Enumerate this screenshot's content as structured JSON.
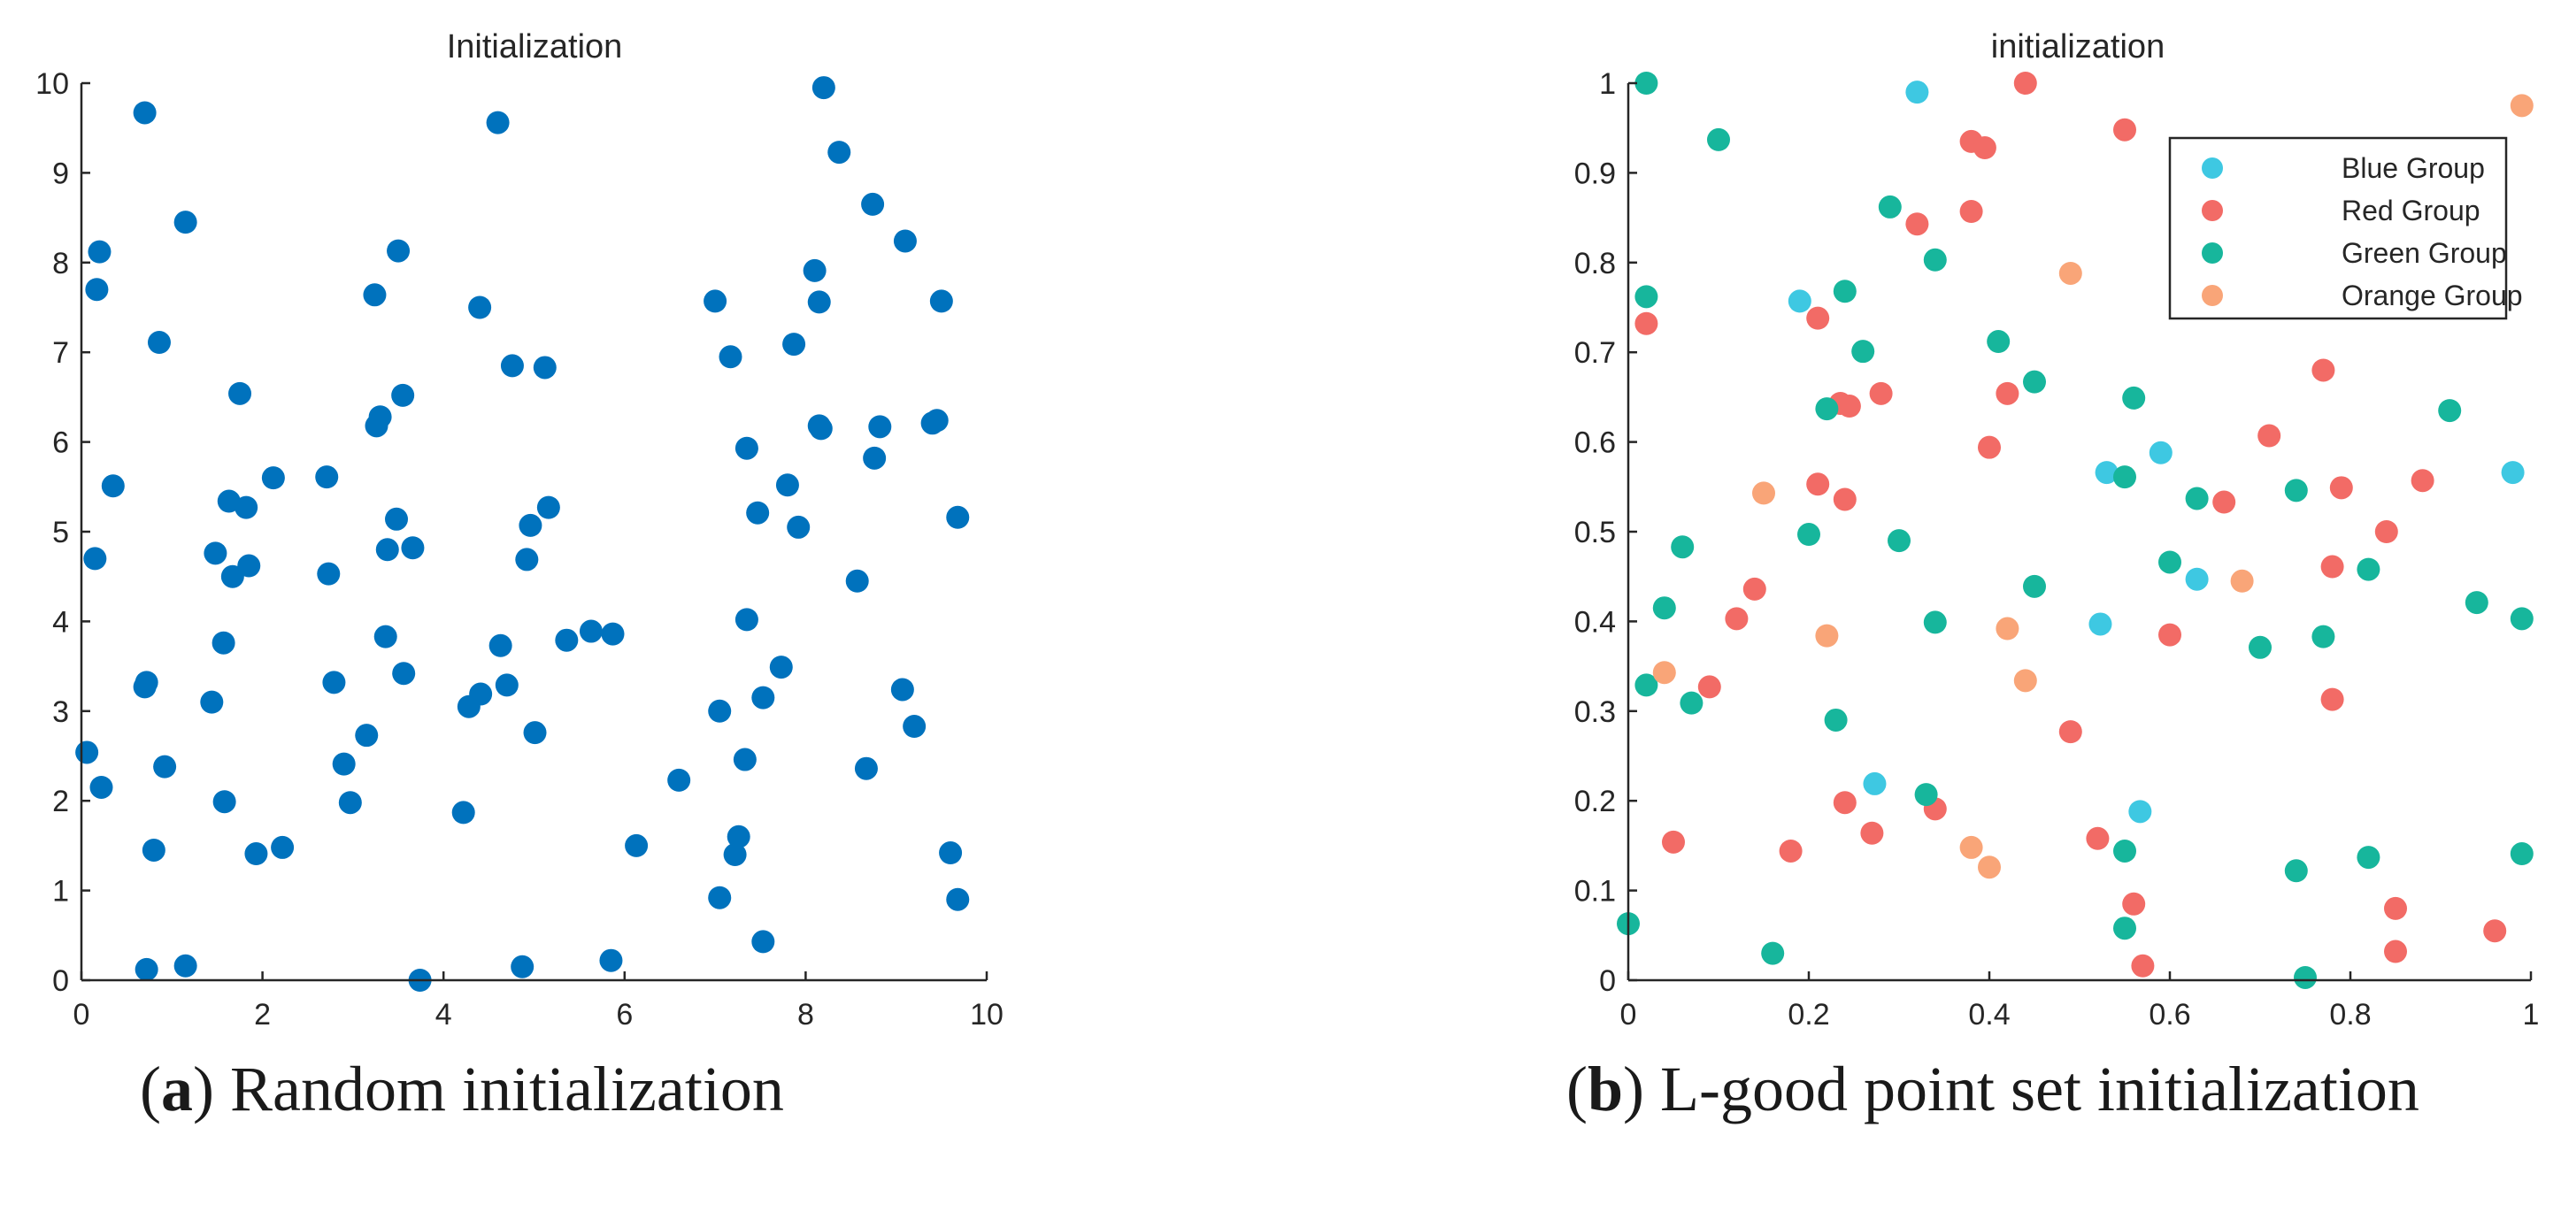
{
  "chart_data": [
    {
      "type": "scatter",
      "title": "Initialization",
      "xlabel": "",
      "ylabel": "",
      "xlim": [
        0,
        10
      ],
      "ylim": [
        0,
        10
      ],
      "xticks": [
        "0",
        "2",
        "4",
        "6",
        "8",
        "10"
      ],
      "yticks": [
        "0",
        "1",
        "2",
        "3",
        "4",
        "5",
        "6",
        "7",
        "8",
        "9",
        "10"
      ],
      "caption_letter": "a",
      "caption_text": " Random initialization",
      "series": [
        {
          "name": "Random",
          "color": "#0072BD",
          "points": [
            [
              0.06,
              2.54
            ],
            [
              0.15,
              4.7
            ],
            [
              0.17,
              7.7
            ],
            [
              0.2,
              8.12
            ],
            [
              0.22,
              2.15
            ],
            [
              0.35,
              5.51
            ],
            [
              0.7,
              9.67
            ],
            [
              0.7,
              3.27
            ],
            [
              0.72,
              3.32
            ],
            [
              0.72,
              0.12
            ],
            [
              0.8,
              1.45
            ],
            [
              0.86,
              7.11
            ],
            [
              0.92,
              2.38
            ],
            [
              1.15,
              8.45
            ],
            [
              1.15,
              0.16
            ],
            [
              1.44,
              3.1
            ],
            [
              1.48,
              4.76
            ],
            [
              1.57,
              3.76
            ],
            [
              1.58,
              1.99
            ],
            [
              1.63,
              5.34
            ],
            [
              1.67,
              4.5
            ],
            [
              1.75,
              6.54
            ],
            [
              1.82,
              5.27
            ],
            [
              1.85,
              4.62
            ],
            [
              1.93,
              1.41
            ],
            [
              2.12,
              5.6
            ],
            [
              2.22,
              1.48
            ],
            [
              2.71,
              5.61
            ],
            [
              2.73,
              4.53
            ],
            [
              2.79,
              3.32
            ],
            [
              2.9,
              2.41
            ],
            [
              2.97,
              1.98
            ],
            [
              3.15,
              2.73
            ],
            [
              3.24,
              7.64
            ],
            [
              3.26,
              6.18
            ],
            [
              3.3,
              6.28
            ],
            [
              3.36,
              3.83
            ],
            [
              3.38,
              4.8
            ],
            [
              3.48,
              5.14
            ],
            [
              3.5,
              8.13
            ],
            [
              3.55,
              6.52
            ],
            [
              3.56,
              3.42
            ],
            [
              3.66,
              4.82
            ],
            [
              3.74,
              0.0
            ],
            [
              4.22,
              1.87
            ],
            [
              4.28,
              3.05
            ],
            [
              4.4,
              7.5
            ],
            [
              4.41,
              3.19
            ],
            [
              4.6,
              9.56
            ],
            [
              4.63,
              3.73
            ],
            [
              4.7,
              3.29
            ],
            [
              4.76,
              6.85
            ],
            [
              4.87,
              0.15
            ],
            [
              4.92,
              4.69
            ],
            [
              4.96,
              5.07
            ],
            [
              5.01,
              2.76
            ],
            [
              5.12,
              6.83
            ],
            [
              5.16,
              5.27
            ],
            [
              5.36,
              3.79
            ],
            [
              5.63,
              3.89
            ],
            [
              5.85,
              0.22
            ],
            [
              5.87,
              3.86
            ],
            [
              6.13,
              1.5
            ],
            [
              6.6,
              2.23
            ],
            [
              7.0,
              7.57
            ],
            [
              7.05,
              3.0
            ],
            [
              7.05,
              0.92
            ],
            [
              7.17,
              6.95
            ],
            [
              7.22,
              1.4
            ],
            [
              7.26,
              1.6
            ],
            [
              7.33,
              2.46
            ],
            [
              7.35,
              5.93
            ],
            [
              7.35,
              4.02
            ],
            [
              7.47,
              5.21
            ],
            [
              7.53,
              3.15
            ],
            [
              7.53,
              0.43
            ],
            [
              7.73,
              3.49
            ],
            [
              7.8,
              5.52
            ],
            [
              7.87,
              7.09
            ],
            [
              7.92,
              5.05
            ],
            [
              8.1,
              7.91
            ],
            [
              8.15,
              7.56
            ],
            [
              8.15,
              6.18
            ],
            [
              8.17,
              6.15
            ],
            [
              8.2,
              9.95
            ],
            [
              8.37,
              9.23
            ],
            [
              8.57,
              4.45
            ],
            [
              8.67,
              2.36
            ],
            [
              8.74,
              8.65
            ],
            [
              8.76,
              5.82
            ],
            [
              8.82,
              6.17
            ],
            [
              9.07,
              3.24
            ],
            [
              9.1,
              8.24
            ],
            [
              9.2,
              2.83
            ],
            [
              9.4,
              6.21
            ],
            [
              9.45,
              6.24
            ],
            [
              9.5,
              7.57
            ],
            [
              9.6,
              1.42
            ],
            [
              9.68,
              5.16
            ],
            [
              9.68,
              0.9
            ]
          ]
        }
      ]
    },
    {
      "type": "scatter",
      "title": "initialization",
      "xlabel": "",
      "ylabel": "",
      "xlim": [
        0,
        1
      ],
      "ylim": [
        0,
        1
      ],
      "xticks": [
        "0",
        "0.2",
        "0.4",
        "0.6",
        "0.8",
        "1"
      ],
      "yticks": [
        "0",
        "0.1",
        "0.2",
        "0.3",
        "0.4",
        "0.5",
        "0.6",
        "0.7",
        "0.8",
        "0.9",
        "1"
      ],
      "legend_position": "top-right",
      "caption_letter": "b",
      "caption_text": " L-good point set initialization",
      "series": [
        {
          "name": "Blue Group",
          "color": "#3EC8E2",
          "points": [
            [
              0.32,
              0.99
            ],
            [
              0.19,
              0.757
            ],
            [
              0.53,
              0.566
            ],
            [
              0.59,
              0.588
            ],
            [
              0.63,
              0.447
            ],
            [
              0.523,
              0.397
            ],
            [
              0.98,
              0.566
            ],
            [
              0.273,
              0.219
            ],
            [
              0.567,
              0.188
            ]
          ]
        },
        {
          "name": "Red Group",
          "color": "#F26B66",
          "points": [
            [
              0.44,
              1.0
            ],
            [
              0.55,
              0.948
            ],
            [
              0.38,
              0.935
            ],
            [
              0.395,
              0.928
            ],
            [
              0.38,
              0.857
            ],
            [
              0.32,
              0.843
            ],
            [
              0.02,
              0.732
            ],
            [
              0.21,
              0.738
            ],
            [
              0.28,
              0.654
            ],
            [
              0.235,
              0.643
            ],
            [
              0.245,
              0.64
            ],
            [
              0.42,
              0.654
            ],
            [
              0.4,
              0.594
            ],
            [
              0.77,
              0.68
            ],
            [
              0.71,
              0.607
            ],
            [
              0.21,
              0.553
            ],
            [
              0.24,
              0.536
            ],
            [
              0.66,
              0.533
            ],
            [
              0.79,
              0.549
            ],
            [
              0.88,
              0.557
            ],
            [
              0.84,
              0.5
            ],
            [
              0.78,
              0.461
            ],
            [
              0.14,
              0.436
            ],
            [
              0.12,
              0.403
            ],
            [
              0.6,
              0.385
            ],
            [
              0.09,
              0.327
            ],
            [
              0.49,
              0.277
            ],
            [
              0.78,
              0.313
            ],
            [
              0.24,
              0.198
            ],
            [
              0.34,
              0.191
            ],
            [
              0.05,
              0.154
            ],
            [
              0.18,
              0.144
            ],
            [
              0.27,
              0.164
            ],
            [
              0.52,
              0.158
            ],
            [
              0.56,
              0.085
            ],
            [
              0.57,
              0.016
            ],
            [
              0.85,
              0.08
            ],
            [
              0.85,
              0.032
            ],
            [
              0.96,
              0.055
            ]
          ]
        },
        {
          "name": "Green Group",
          "color": "#17B69C",
          "points": [
            [
              0.02,
              1.0
            ],
            [
              0.1,
              0.937
            ],
            [
              0.02,
              0.762
            ],
            [
              0.29,
              0.862
            ],
            [
              0.34,
              0.803
            ],
            [
              0.24,
              0.768
            ],
            [
              0.26,
              0.701
            ],
            [
              0.41,
              0.712
            ],
            [
              0.22,
              0.637
            ],
            [
              0.45,
              0.667
            ],
            [
              0.56,
              0.649
            ],
            [
              0.91,
              0.635
            ],
            [
              0.55,
              0.561
            ],
            [
              0.63,
              0.537
            ],
            [
              0.74,
              0.546
            ],
            [
              0.06,
              0.483
            ],
            [
              0.2,
              0.497
            ],
            [
              0.3,
              0.49
            ],
            [
              0.6,
              0.466
            ],
            [
              0.82,
              0.458
            ],
            [
              0.04,
              0.415
            ],
            [
              0.34,
              0.399
            ],
            [
              0.45,
              0.439
            ],
            [
              0.77,
              0.383
            ],
            [
              0.7,
              0.371
            ],
            [
              0.94,
              0.421
            ],
            [
              0.99,
              0.403
            ],
            [
              0.02,
              0.329
            ],
            [
              0.07,
              0.309
            ],
            [
              0.23,
              0.29
            ],
            [
              0.33,
              0.207
            ],
            [
              0.55,
              0.144
            ],
            [
              0.74,
              0.122
            ],
            [
              0.82,
              0.137
            ],
            [
              0.99,
              0.141
            ],
            [
              0.0,
              0.063
            ],
            [
              0.16,
              0.03
            ],
            [
              0.55,
              0.058
            ],
            [
              0.75,
              0.003
            ]
          ]
        },
        {
          "name": "Orange Group",
          "color": "#F9A578",
          "points": [
            [
              0.99,
              0.975
            ],
            [
              0.49,
              0.788
            ],
            [
              0.15,
              0.543
            ],
            [
              0.68,
              0.445
            ],
            [
              0.22,
              0.384
            ],
            [
              0.42,
              0.392
            ],
            [
              0.04,
              0.343
            ],
            [
              0.44,
              0.334
            ],
            [
              0.38,
              0.148
            ],
            [
              0.4,
              0.126
            ]
          ]
        }
      ]
    }
  ]
}
